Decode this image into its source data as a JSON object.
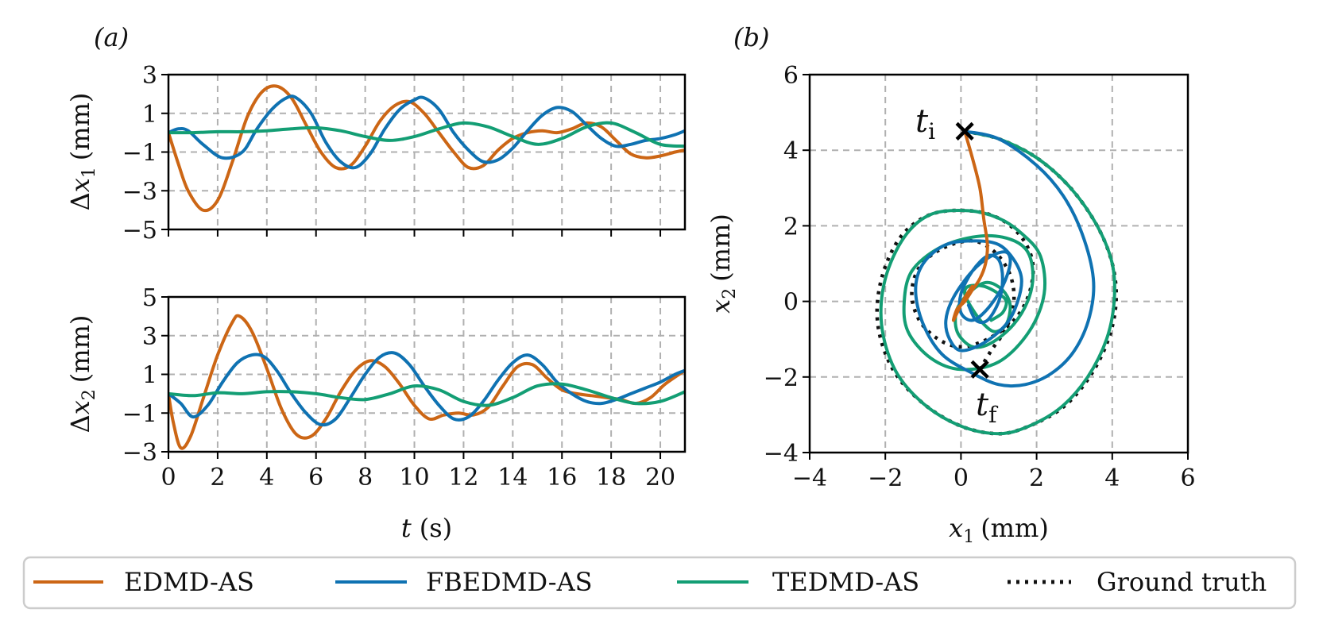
{
  "colors": {
    "edmd": "#cc6615",
    "fbedmd": "#0f72b2",
    "tedmd": "#139e74",
    "truth": "#111111",
    "grid": "#b0b0b0"
  },
  "panel_labels": {
    "a": "(a)",
    "b": "(b)"
  },
  "markers": {
    "ti_base": "t",
    "ti_sub": "i",
    "tf_base": "t",
    "tf_sub": "f"
  },
  "legend": [
    {
      "label": "EDMD-AS",
      "color_key": "edmd",
      "style": "solid"
    },
    {
      "label": "FBEDMD-AS",
      "color_key": "fbedmd",
      "style": "solid"
    },
    {
      "label": "TEDMD-AS",
      "color_key": "tedmd",
      "style": "solid"
    },
    {
      "label": "Ground truth",
      "color_key": "truth",
      "style": "dotted"
    }
  ],
  "chart_data": [
    {
      "id": "a1",
      "type": "line",
      "xlabel": "",
      "ylabel": "Δx₁ (mm)",
      "ylabel_parts": {
        "delta": "Δ",
        "var": "x",
        "sub": "1",
        "unit": "(mm)"
      },
      "xlim": [
        0,
        21
      ],
      "ylim": [
        -5,
        3
      ],
      "xticks": [
        0,
        2,
        4,
        6,
        8,
        10,
        12,
        14,
        16,
        18,
        20
      ],
      "yticks": [
        3,
        1,
        -1,
        -3,
        -5
      ],
      "ytick_labels": [
        "3",
        "1",
        "−1",
        "−3",
        "−5"
      ],
      "show_xtick_labels": false,
      "grid": true,
      "series": [
        {
          "name": "EDMD-AS",
          "color_key": "edmd",
          "x": [
            0,
            0.4,
            0.8,
            1.4,
            2.0,
            2.6,
            3.2,
            3.8,
            4.4,
            5.0,
            5.6,
            6.2,
            6.8,
            7.4,
            8.0,
            8.6,
            9.2,
            9.8,
            10.4,
            11.0,
            11.6,
            12.2,
            12.8,
            13.4,
            14.0,
            14.6,
            15.2,
            15.8,
            16.4,
            17.0,
            17.6,
            18.2,
            18.8,
            19.4,
            20.0,
            20.6,
            21.0
          ],
          "y": [
            0.0,
            -1.6,
            -3.0,
            -4.0,
            -3.5,
            -1.5,
            0.8,
            2.1,
            2.4,
            1.8,
            0.4,
            -1.0,
            -1.8,
            -1.7,
            -0.7,
            0.6,
            1.4,
            1.6,
            1.0,
            0.0,
            -1.0,
            -1.8,
            -1.7,
            -0.9,
            -0.3,
            0.0,
            0.1,
            0.0,
            0.2,
            0.5,
            0.3,
            -0.4,
            -1.1,
            -1.3,
            -1.2,
            -1.0,
            -0.9
          ]
        },
        {
          "name": "FBEDMD-AS",
          "color_key": "fbedmd",
          "x": [
            0,
            0.4,
            0.8,
            1.4,
            2.2,
            3.0,
            3.6,
            4.2,
            4.8,
            5.2,
            5.8,
            6.4,
            7.0,
            7.6,
            8.2,
            8.8,
            9.4,
            10.0,
            10.4,
            11.0,
            11.6,
            12.2,
            12.8,
            13.4,
            14.0,
            14.6,
            15.2,
            15.8,
            16.4,
            17.0,
            17.6,
            18.2,
            18.8,
            19.4,
            20.0,
            20.6,
            21.0
          ],
          "y": [
            0.0,
            0.2,
            0.1,
            -0.6,
            -1.3,
            -1.0,
            0.2,
            1.2,
            1.8,
            1.8,
            1.0,
            -0.5,
            -1.5,
            -1.8,
            -1.1,
            0.2,
            1.2,
            1.7,
            1.8,
            1.2,
            0.0,
            -0.9,
            -1.5,
            -1.4,
            -0.8,
            0.1,
            0.9,
            1.3,
            1.1,
            0.4,
            -0.3,
            -0.7,
            -0.6,
            -0.4,
            -0.3,
            -0.1,
            0.1
          ]
        },
        {
          "name": "TEDMD-AS",
          "color_key": "tedmd",
          "x": [
            0,
            1.0,
            2.0,
            3.0,
            4.0,
            5.0,
            6.0,
            7.0,
            8.0,
            9.0,
            10.0,
            11.0,
            12.0,
            13.0,
            14.0,
            15.0,
            16.0,
            17.0,
            18.0,
            19.0,
            20.0,
            21.0
          ],
          "y": [
            0.0,
            0.0,
            0.05,
            0.05,
            0.1,
            0.2,
            0.25,
            0.1,
            -0.2,
            -0.4,
            -0.2,
            0.2,
            0.5,
            0.3,
            -0.2,
            -0.6,
            -0.3,
            0.3,
            0.5,
            0.0,
            -0.6,
            -0.7
          ]
        }
      ]
    },
    {
      "id": "a2",
      "type": "line",
      "xlabel": "t (s)",
      "ylabel": "Δx₂ (mm)",
      "xlabel_parts": {
        "var": "t",
        "unit": "(s)"
      },
      "ylabel_parts": {
        "delta": "Δ",
        "var": "x",
        "sub": "2",
        "unit": "(mm)"
      },
      "xlim": [
        0,
        21
      ],
      "ylim": [
        -3,
        5
      ],
      "xticks": [
        0,
        2,
        4,
        6,
        8,
        10,
        12,
        14,
        16,
        18,
        20
      ],
      "xtick_labels": [
        "0",
        "2",
        "4",
        "6",
        "8",
        "10",
        "12",
        "14",
        "16",
        "18",
        "20"
      ],
      "yticks": [
        5,
        3,
        1,
        -1,
        -3
      ],
      "ytick_labels": [
        "5",
        "3",
        "1",
        "−1",
        "−3"
      ],
      "show_xtick_labels": true,
      "grid": true,
      "series": [
        {
          "name": "EDMD-AS",
          "color_key": "edmd",
          "x": [
            0,
            0.2,
            0.5,
            0.9,
            1.4,
            2.0,
            2.6,
            2.9,
            3.4,
            4.0,
            4.6,
            5.2,
            5.8,
            6.4,
            7.0,
            7.6,
            8.2,
            8.8,
            9.4,
            10.0,
            10.6,
            11.2,
            11.8,
            12.4,
            13.0,
            13.6,
            14.2,
            14.8,
            15.4,
            16.0,
            16.6,
            17.2,
            17.8,
            18.4,
            19.0,
            19.6,
            20.2,
            21.0
          ],
          "y": [
            0.0,
            -1.5,
            -2.8,
            -2.2,
            -0.3,
            2.0,
            3.7,
            4.0,
            3.2,
            1.3,
            -0.8,
            -2.1,
            -2.2,
            -1.3,
            0.1,
            1.2,
            1.7,
            1.4,
            0.5,
            -0.6,
            -1.3,
            -1.1,
            -1.0,
            -1.1,
            -0.7,
            0.4,
            1.4,
            1.5,
            0.8,
            0.2,
            0.0,
            -0.1,
            -0.2,
            -0.3,
            -0.5,
            -0.2,
            0.5,
            1.2
          ]
        },
        {
          "name": "FBEDMD-AS",
          "color_key": "fbedmd",
          "x": [
            0,
            0.5,
            1.0,
            1.6,
            2.2,
            2.8,
            3.4,
            3.9,
            4.4,
            5.0,
            5.6,
            6.2,
            6.8,
            7.4,
            8.0,
            8.6,
            9.2,
            9.8,
            10.4,
            11.0,
            11.6,
            12.2,
            12.8,
            13.4,
            14.0,
            14.6,
            15.2,
            15.8,
            16.4,
            17.0,
            17.6,
            18.2,
            18.8,
            19.4,
            20.0,
            20.6,
            21.0
          ],
          "y": [
            0.0,
            -0.5,
            -1.2,
            -0.6,
            0.6,
            1.6,
            2.0,
            1.9,
            1.2,
            0.0,
            -1.0,
            -1.6,
            -1.3,
            -0.2,
            1.0,
            1.9,
            2.1,
            1.5,
            0.4,
            -0.6,
            -1.3,
            -1.2,
            -0.4,
            0.7,
            1.6,
            2.0,
            1.5,
            0.6,
            0.0,
            -0.4,
            -0.5,
            -0.3,
            0.0,
            0.3,
            0.6,
            1.0,
            1.2
          ]
        },
        {
          "name": "TEDMD-AS",
          "color_key": "tedmd",
          "x": [
            0,
            1.0,
            2.0,
            3.0,
            4.0,
            5.0,
            6.0,
            7.0,
            8.0,
            9.0,
            10.0,
            11.0,
            12.0,
            13.0,
            14.0,
            15.0,
            16.0,
            17.0,
            18.0,
            19.0,
            20.0,
            21.0
          ],
          "y": [
            0.0,
            -0.1,
            0.05,
            0.0,
            0.1,
            0.1,
            0.0,
            -0.2,
            -0.3,
            0.0,
            0.4,
            0.2,
            -0.4,
            -0.6,
            -0.2,
            0.4,
            0.5,
            0.2,
            -0.2,
            -0.5,
            -0.4,
            0.1
          ]
        }
      ]
    },
    {
      "id": "b",
      "type": "line",
      "xlabel": "x₁ (mm)",
      "ylabel": "x₂ (mm)",
      "xlabel_parts": {
        "var": "x",
        "sub": "1",
        "unit": "(mm)"
      },
      "ylabel_parts": {
        "var": "x",
        "sub": "2",
        "unit": "(mm)"
      },
      "xlim": [
        -4,
        6
      ],
      "ylim": [
        -4,
        6
      ],
      "xticks": [
        -4,
        -2,
        0,
        2,
        4,
        6
      ],
      "xtick_labels": [
        "−4",
        "−2",
        "0",
        "2",
        "4",
        "6"
      ],
      "yticks": [
        6,
        4,
        2,
        0,
        -2,
        -4
      ],
      "ytick_labels": [
        "6",
        "4",
        "2",
        "0",
        "−2",
        "−4"
      ],
      "show_xtick_labels": true,
      "grid": true,
      "markers": [
        {
          "name": "t_i",
          "x": 0.1,
          "y": 4.5
        },
        {
          "name": "t_f",
          "x": 0.5,
          "y": -1.8
        }
      ],
      "series": [
        {
          "name": "Ground truth",
          "color_key": "truth",
          "style": "dotted",
          "x": [
            0.1,
            1.0,
            2.0,
            2.9,
            3.6,
            4.0,
            4.1,
            3.9,
            3.4,
            2.7,
            1.8,
            1.0,
            0.0,
            -1.0,
            -1.8,
            -2.2,
            -2.1,
            -1.6,
            -0.8,
            0.2,
            1.0,
            1.6,
            1.9,
            1.8,
            1.4,
            0.7,
            0.0,
            -0.6,
            -1.1,
            -1.3,
            -1.1,
            -0.5,
            0.3,
            0.9,
            1.3,
            1.4,
            1.2,
            0.8,
            0.5
          ],
          "y": [
            4.5,
            4.3,
            3.8,
            3.0,
            2.0,
            1.0,
            0.0,
            -1.0,
            -2.0,
            -2.8,
            -3.3,
            -3.5,
            -3.3,
            -2.7,
            -1.8,
            -0.6,
            0.6,
            1.7,
            2.3,
            2.4,
            2.2,
            1.7,
            1.0,
            0.2,
            -0.5,
            -1.0,
            -1.2,
            -1.0,
            -0.5,
            0.2,
            0.9,
            1.4,
            1.6,
            1.3,
            0.7,
            0.0,
            -0.7,
            -1.3,
            -1.8
          ]
        },
        {
          "name": "TEDMD-AS",
          "color_key": "tedmd",
          "style": "solid",
          "x": [
            0.1,
            1.0,
            2.0,
            2.9,
            3.6,
            4.0,
            4.05,
            3.85,
            3.35,
            2.65,
            1.8,
            1.0,
            0.0,
            -1.0,
            -1.75,
            -2.1,
            -2.0,
            -1.5,
            -0.8,
            0.2,
            1.0,
            1.6,
            2.1,
            2.2,
            1.8,
            1.0,
            0.0,
            -0.8,
            -1.4,
            -1.5,
            -1.3,
            -0.6,
            0.3,
            1.1,
            1.7,
            1.9,
            1.8,
            1.4,
            0.8,
            0.3,
            -0.1,
            -0.1,
            0.3,
            0.7,
            1.1,
            1.3,
            1.2,
            0.9,
            0.6,
            0.3,
            0.1,
            0.2,
            0.6,
            1.0,
            1.2,
            1.1,
            0.8
          ],
          "y": [
            4.5,
            4.3,
            3.8,
            3.0,
            2.0,
            1.0,
            0.0,
            -1.0,
            -2.0,
            -2.8,
            -3.3,
            -3.5,
            -3.3,
            -2.7,
            -1.8,
            -0.6,
            0.6,
            1.7,
            2.3,
            2.4,
            2.2,
            1.8,
            1.2,
            0.2,
            -0.8,
            -1.6,
            -1.8,
            -1.5,
            -0.8,
            0.0,
            0.8,
            1.4,
            1.7,
            1.7,
            1.4,
            0.8,
            0.1,
            -0.6,
            -1.1,
            -1.2,
            -0.8,
            -0.2,
            0.3,
            0.5,
            0.3,
            -0.1,
            -0.6,
            -0.8,
            -0.6,
            -0.2,
            0.2,
            0.4,
            0.4,
            0.2,
            0.0,
            -0.3,
            -0.5
          ]
        },
        {
          "name": "FBEDMD-AS",
          "color_key": "fbedmd",
          "style": "solid",
          "x": [
            0.1,
            1.0,
            2.0,
            2.7,
            3.2,
            3.5,
            3.4,
            3.0,
            2.4,
            1.7,
            1.0,
            0.3,
            -0.5,
            -1.0,
            -1.2,
            -1.0,
            -0.4,
            0.4,
            1.0,
            1.4,
            1.6,
            1.5,
            1.2,
            0.6,
            0.0,
            -0.3,
            -0.4,
            -0.2,
            0.3,
            0.8,
            1.2,
            1.3,
            1.1,
            0.7,
            0.3,
            0.0,
            0.0,
            0.3,
            0.7,
            1.0,
            1.1,
            1.0,
            0.7,
            0.4,
            0.2
          ],
          "y": [
            4.5,
            4.3,
            3.6,
            2.8,
            1.8,
            0.6,
            -0.4,
            -1.3,
            -1.9,
            -2.2,
            -2.2,
            -1.9,
            -1.4,
            -0.6,
            0.3,
            1.0,
            1.5,
            1.6,
            1.5,
            1.1,
            0.6,
            0.0,
            -0.6,
            -1.1,
            -1.3,
            -1.0,
            -0.5,
            0.1,
            0.8,
            1.2,
            1.3,
            1.0,
            0.4,
            -0.2,
            -0.5,
            -0.3,
            0.2,
            0.8,
            1.2,
            1.1,
            0.6,
            0.0,
            -0.5,
            -0.5,
            -0.1
          ]
        },
        {
          "name": "EDMD-AS",
          "color_key": "edmd",
          "style": "solid",
          "x": [
            0.1,
            0.3,
            0.5,
            0.6,
            0.7,
            0.65,
            0.5,
            0.3,
            0.1,
            -0.1,
            -0.2,
            -0.1,
            0.1,
            0.3
          ],
          "y": [
            4.5,
            3.8,
            3.0,
            2.2,
            1.5,
            1.0,
            0.6,
            0.3,
            0.0,
            -0.2,
            -0.5,
            -0.3,
            0.1,
            0.4
          ]
        }
      ]
    }
  ]
}
